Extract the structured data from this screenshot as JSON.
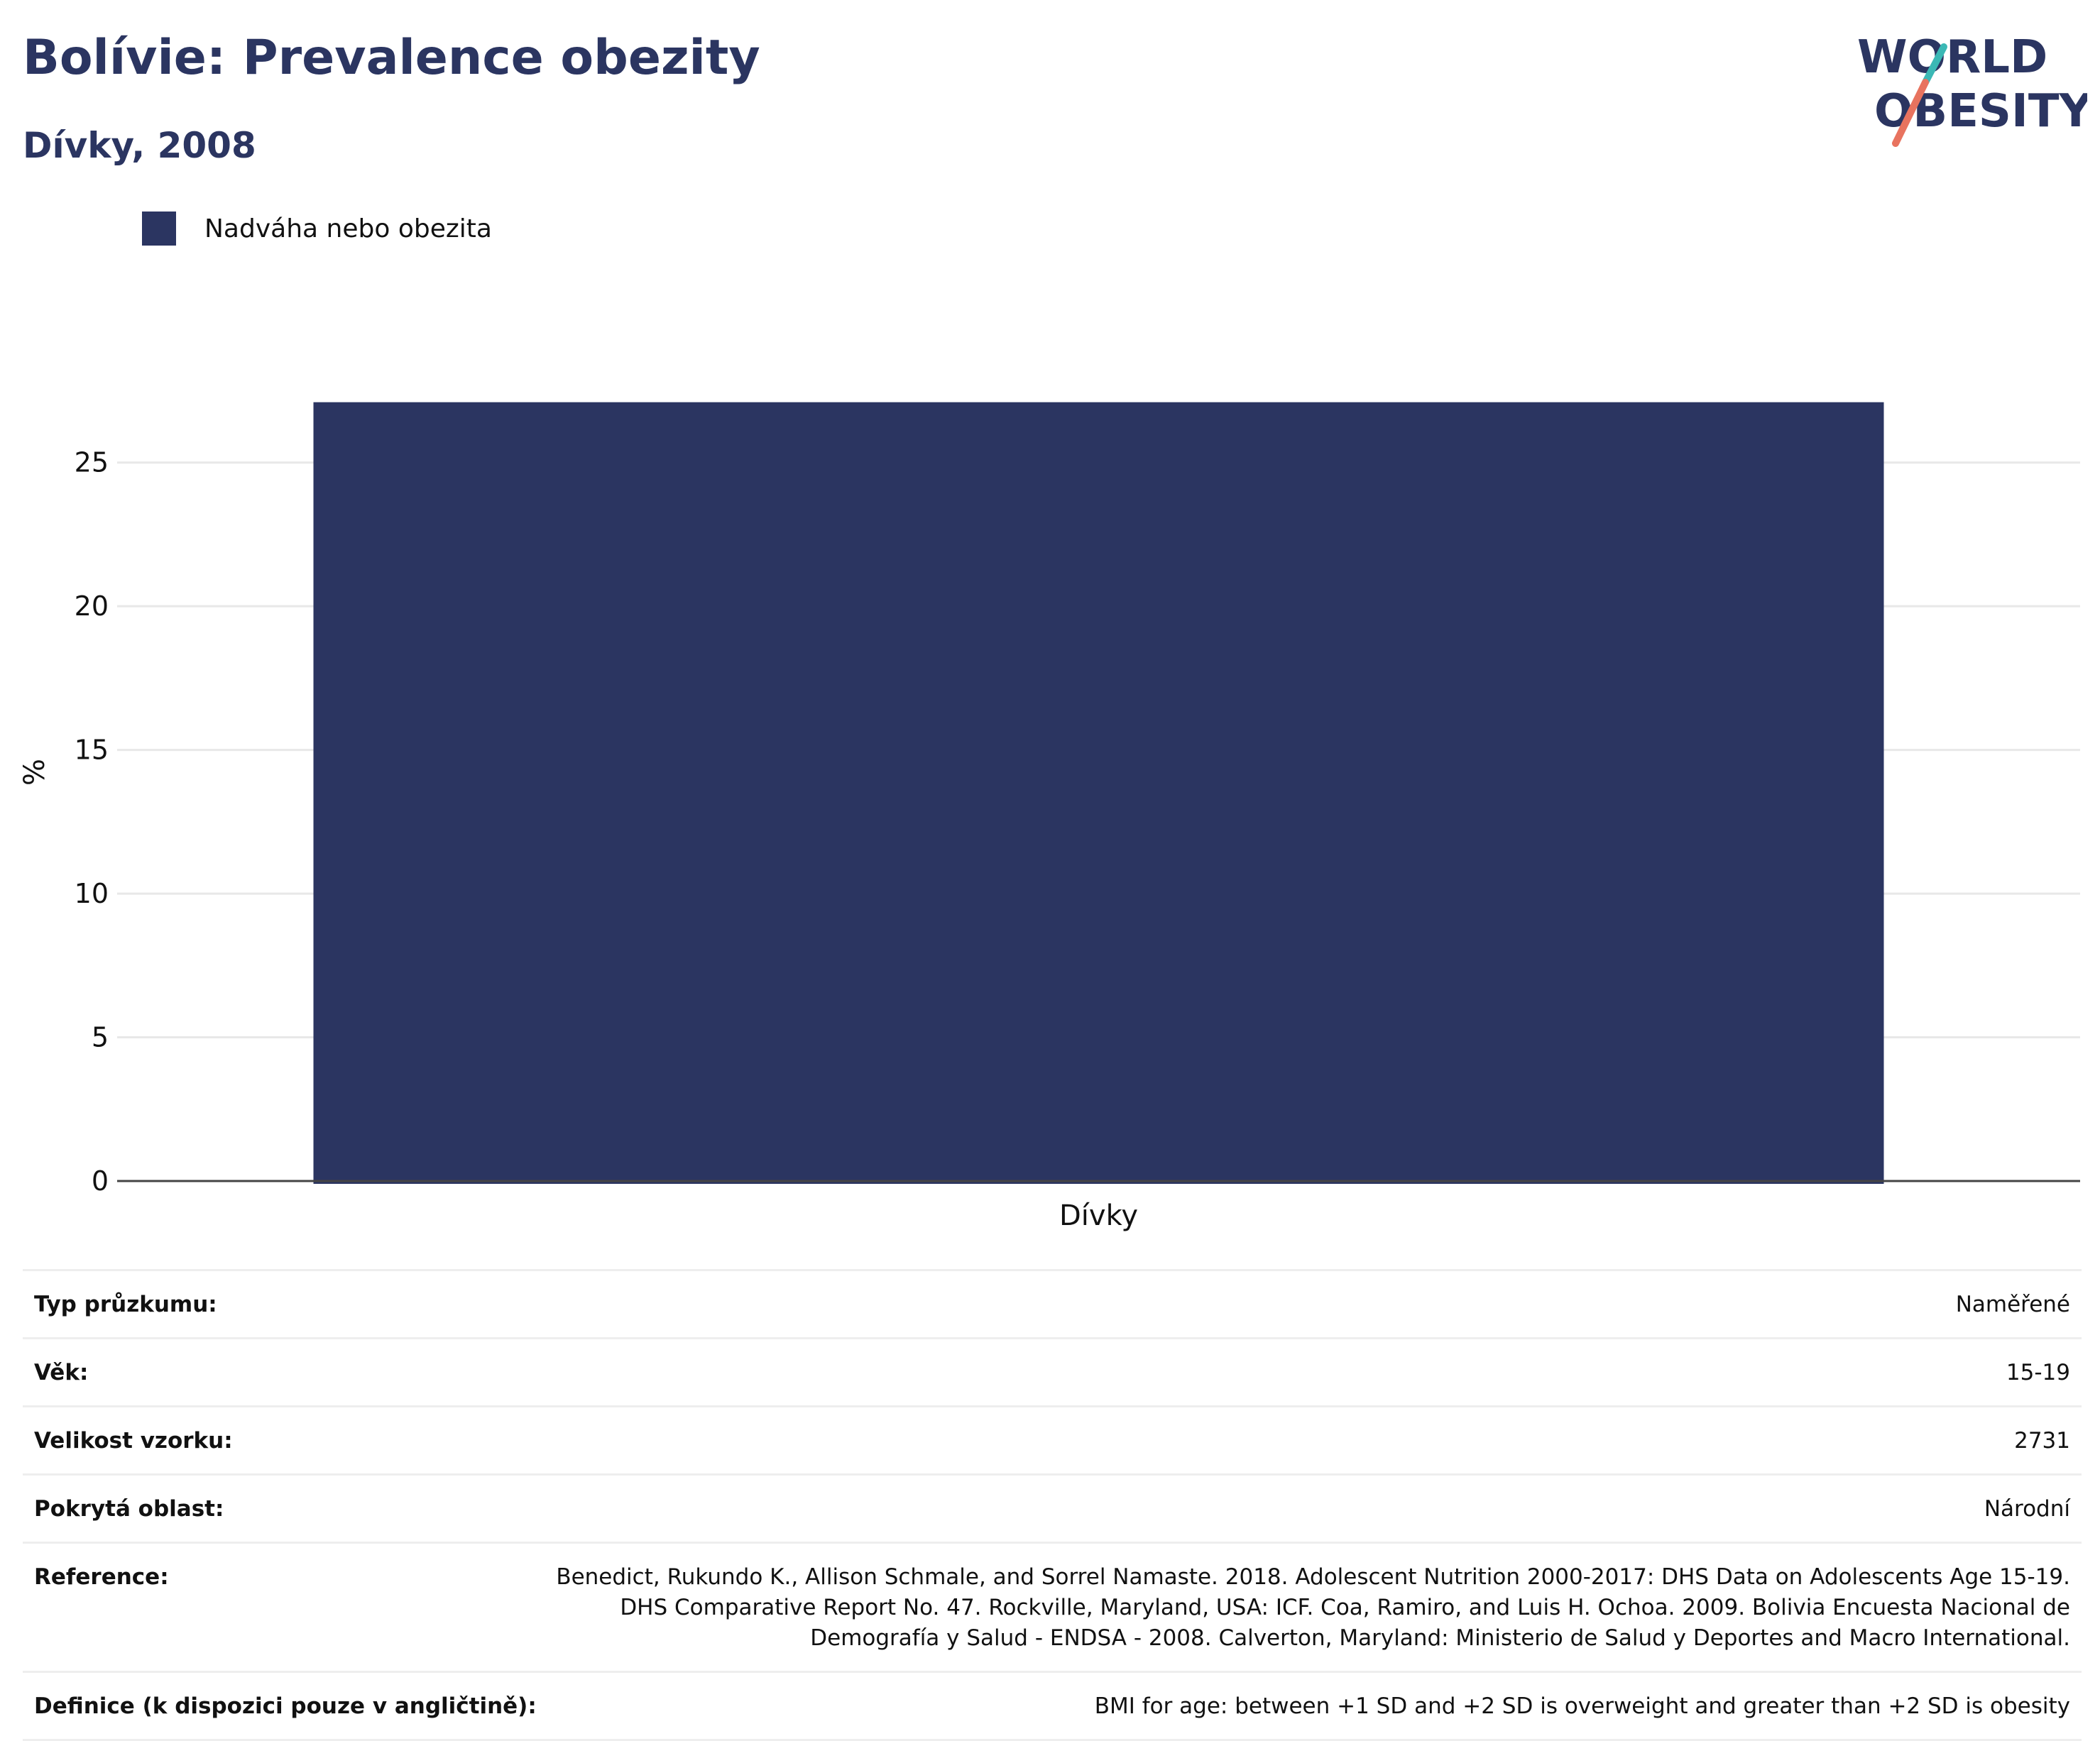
{
  "header": {
    "title": "Bolívie: Prevalence obezity",
    "subtitle": "Dívky, 2008"
  },
  "logo": {
    "line1": "WORLD",
    "line2": "OBESITY",
    "accent_teal": "#3bb8b5",
    "accent_coral": "#e8735f",
    "text_color": "#2b3561"
  },
  "legend": {
    "label": "Nadváha nebo obezita",
    "color": "#2b3561"
  },
  "chart_data": {
    "type": "bar",
    "categories": [
      "Dívky"
    ],
    "series": [
      {
        "name": "Nadváha nebo obezita",
        "values": [
          27.1
        ],
        "color": "#2b3561"
      }
    ],
    "ylabel": "%",
    "yticks": [
      0,
      5,
      10,
      15,
      20,
      25
    ],
    "ylim": [
      0,
      28.5
    ],
    "grid": true,
    "legend_position": "top-left"
  },
  "meta": [
    {
      "key": "Typ průzkumu:",
      "value": "Naměřené"
    },
    {
      "key": "Věk:",
      "value": "15-19"
    },
    {
      "key": "Velikost vzorku:",
      "value": "2731"
    },
    {
      "key": "Pokrytá oblast:",
      "value": "Národní"
    },
    {
      "key": "Reference:",
      "value": "Benedict, Rukundo K., Allison Schmale, and Sorrel Namaste. 2018. Adolescent Nutrition 2000-2017: DHS Data on Adolescents Age 15-19. DHS Comparative Report No. 47. Rockville, Maryland, USA: ICF. Coa, Ramiro, and Luis H. Ochoa. 2009. Bolivia Encuesta Nacional de Demografía y Salud - ENDSA - 2008. Calverton, Maryland: Ministerio de Salud y Deportes and Macro International."
    },
    {
      "key": "Definice (k dispozici pouze v angličtině):",
      "value": "BMI for age: between +1 SD and +2 SD is overweight and greater than +2 SD is obesity"
    }
  ]
}
